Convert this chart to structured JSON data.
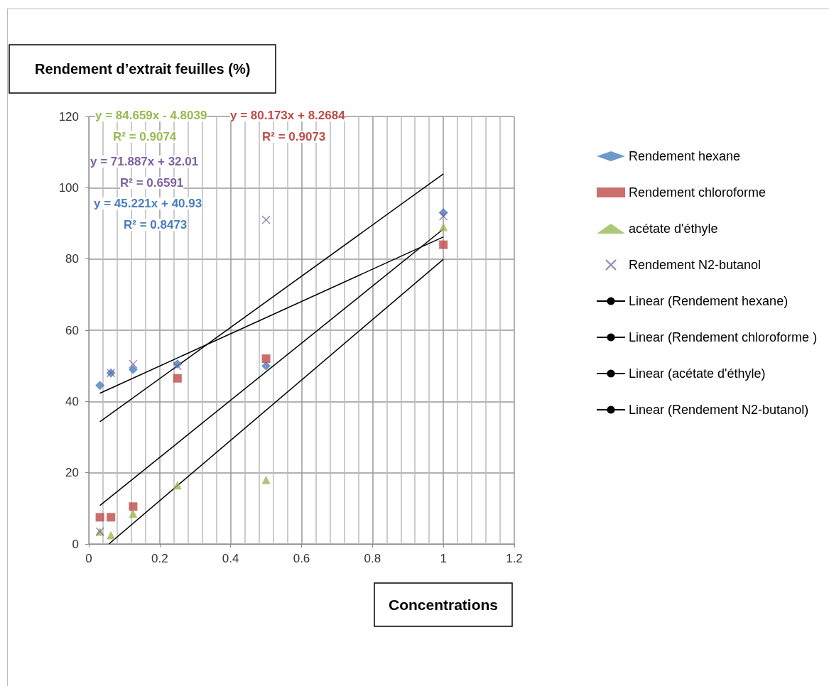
{
  "chart_data": {
    "type": "scatter",
    "title": "Rendement d’extrait feuilles (%)",
    "xlabel": "Concentrations",
    "x": [
      0.03125,
      0.0625,
      0.125,
      0.25,
      0.5,
      1
    ],
    "series": [
      {
        "name": "Rendement hexane",
        "color": "#4a7ebb",
        "marker": "diamond",
        "values": [
          44.5,
          48,
          49,
          50.5,
          50,
          93
        ]
      },
      {
        "name": "Rendement chloroforme",
        "color": "#be4b48",
        "marker": "square",
        "values": [
          7.5,
          7.5,
          10.5,
          46.5,
          52,
          84
        ]
      },
      {
        "name": "acétate d'éthyle",
        "color": "#98b954",
        "marker": "triangle",
        "values": [
          3.5,
          2.5,
          8.5,
          16.5,
          18,
          89
        ]
      },
      {
        "name": "Rendement N2-butanol",
        "color": "#7d60a0",
        "marker": "cross",
        "values": [
          3.5,
          48,
          50.5,
          50,
          91,
          92
        ]
      },
      {
        "name": "Linear (Rendement hexane)",
        "type": "line",
        "color": "#000000",
        "x": [
          0.03125,
          1
        ],
        "values": [
          42.3,
          86.2
        ]
      },
      {
        "name": "Linear (Rendement chloroforme )",
        "type": "line",
        "color": "#000000",
        "x": [
          0.03125,
          1
        ],
        "values": [
          10.8,
          88.4
        ]
      },
      {
        "name": "Linear (acétate d'éthyle)",
        "type": "line",
        "color": "#000000",
        "x": [
          0.0567,
          1
        ],
        "values": [
          0,
          79.9
        ]
      },
      {
        "name": "Linear (Rendement N2-butanol)",
        "type": "line",
        "color": "#000000",
        "x": [
          0.03125,
          1
        ],
        "values": [
          34.3,
          103.9
        ]
      }
    ],
    "annotations": [
      "y = 84.659x - 4.8039",
      "R² = 0.9074",
      "y = 80.173x + 8.2684",
      "R² = 0.9073",
      "y = 71.887x + 32.01",
      "R² = 0.6591",
      "y = 45.221x + 40.93",
      "R² = 0.8473"
    ],
    "xlim": [
      0,
      1.2
    ],
    "xticks": [
      0,
      0.2,
      0.4,
      0.6,
      0.8,
      1,
      1.2
    ],
    "ylim": [
      0,
      120
    ],
    "yticks": [
      0,
      20,
      40,
      60,
      80,
      100,
      120
    ],
    "grid": true,
    "legend": "right"
  }
}
